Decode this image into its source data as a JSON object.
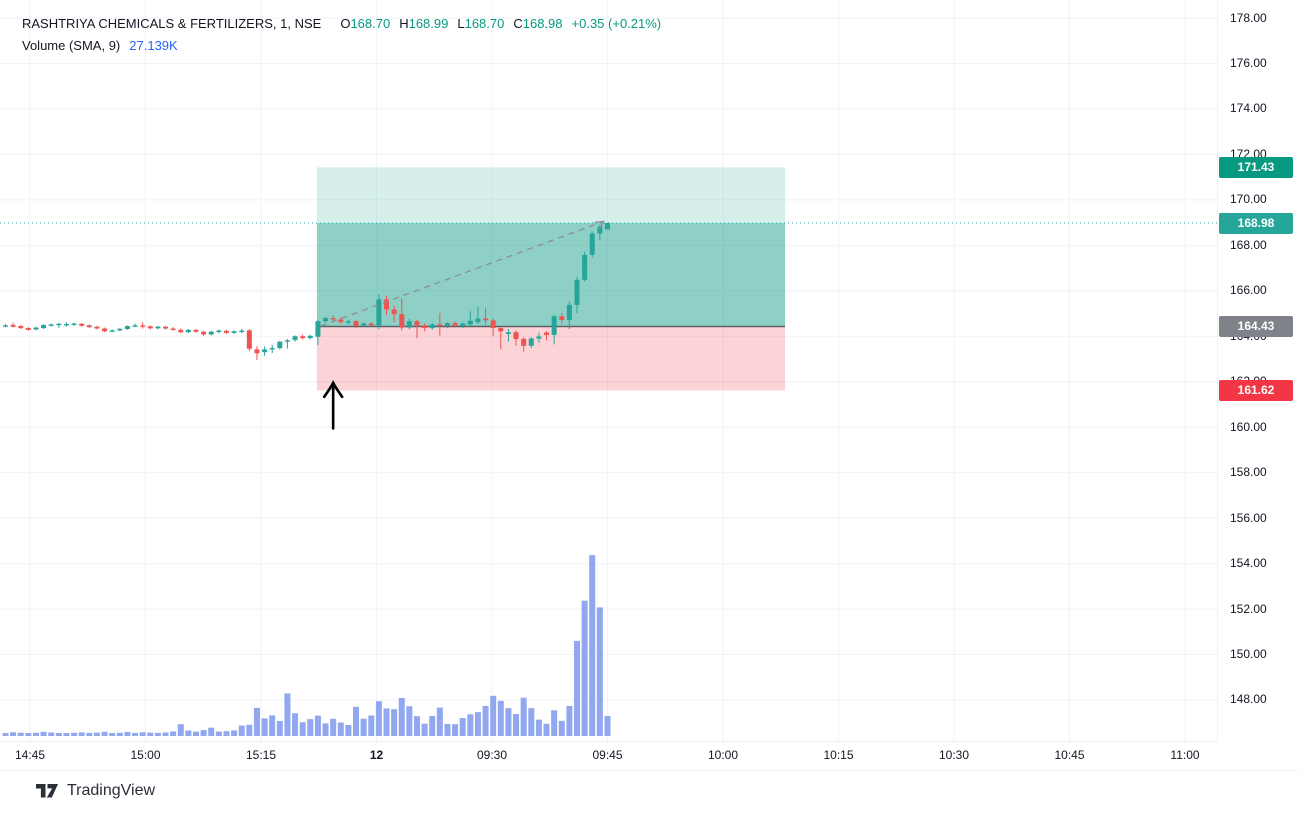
{
  "legend": {
    "title": "RASHTRIYA CHEMICALS & FERTILIZERS, 1, NSE",
    "ohlc": [
      {
        "label": "O",
        "value": "168.70"
      },
      {
        "label": "H",
        "value": "168.99"
      },
      {
        "label": "L",
        "value": "168.70"
      },
      {
        "label": "C",
        "value": "168.98"
      }
    ],
    "change": "+0.35 (+0.21%)",
    "volume_label": "Volume (SMA, 9)",
    "volume_value": "27.139K"
  },
  "price_axis": {
    "ticks": [
      {
        "label": "178.00",
        "price": 178.0
      },
      {
        "label": "176.00",
        "price": 176.0
      },
      {
        "label": "174.00",
        "price": 174.0
      },
      {
        "label": "172.00",
        "price": 172.0
      },
      {
        "label": "170.00",
        "price": 170.0
      },
      {
        "label": "168.00",
        "price": 168.0
      },
      {
        "label": "166.00",
        "price": 166.0
      },
      {
        "label": "164.00",
        "price": 164.0
      },
      {
        "label": "162.00",
        "price": 162.0
      },
      {
        "label": "160.00",
        "price": 160.0
      },
      {
        "label": "158.00",
        "price": 158.0
      },
      {
        "label": "156.00",
        "price": 156.0
      },
      {
        "label": "154.00",
        "price": 154.0
      },
      {
        "label": "152.00",
        "price": 152.0
      },
      {
        "label": "150.00",
        "price": 150.0
      },
      {
        "label": "148.00",
        "price": 148.0
      }
    ],
    "badges": [
      {
        "label": "171.43",
        "price": 171.43,
        "color": "#089981",
        "name": "target-price-badge"
      },
      {
        "label": "168.98",
        "price": 168.98,
        "color": "#26a69a",
        "name": "current-price-badge"
      },
      {
        "label": "164.43",
        "price": 164.43,
        "color": "#7f8289",
        "name": "entry-price-badge"
      },
      {
        "label": "161.62",
        "price": 161.62,
        "color": "#f23645",
        "name": "stop-price-badge"
      }
    ]
  },
  "time_axis": {
    "ticks": [
      {
        "label": "14:45",
        "bold": false
      },
      {
        "label": "15:00",
        "bold": false
      },
      {
        "label": "15:15",
        "bold": false
      },
      {
        "label": "12",
        "bold": true
      },
      {
        "label": "09:30",
        "bold": false
      },
      {
        "label": "09:45",
        "bold": false
      },
      {
        "label": "10:00",
        "bold": false
      },
      {
        "label": "10:15",
        "bold": false
      },
      {
        "label": "10:30",
        "bold": false
      },
      {
        "label": "10:45",
        "bold": false
      },
      {
        "label": "11:00",
        "bold": false
      }
    ]
  },
  "chart_data": {
    "type": "candlestick",
    "symbol": "RASHTRIYA CHEMICALS & FERTILIZERS",
    "interval": "1",
    "exchange": "NSE",
    "last": {
      "open": 168.7,
      "high": 168.99,
      "low": 168.7,
      "close": 168.98,
      "change": 0.35,
      "change_pct": 0.21
    },
    "current_price": 168.98,
    "volume_sma_period": 9,
    "volume_sma_value_k": 27.139,
    "ylim": [
      146.2,
      178.8
    ],
    "grid": true,
    "position_tool": {
      "target_price": 171.43,
      "entry_price": 164.43,
      "stop_price": 161.62,
      "start_index": 41,
      "end_time_approx": "10:07"
    },
    "annotations": {
      "trend_arrow_dashed": {
        "from_index": 41,
        "from_price": 164.45,
        "to_index": 79,
        "to_price": 169.05
      },
      "black_up_arrow": {
        "at_index": 43,
        "tip_price": 161.95,
        "tail_price": 159.95
      }
    },
    "candles": [
      [
        "14:41",
        164.45,
        164.55,
        164.4,
        164.48,
        2.2
      ],
      [
        "14:42",
        164.5,
        164.6,
        164.38,
        164.42,
        2.8
      ],
      [
        "14:43",
        164.45,
        164.5,
        164.32,
        164.36,
        2.4
      ],
      [
        "14:44",
        164.36,
        164.4,
        164.24,
        164.28,
        2.2
      ],
      [
        "14:45",
        164.3,
        164.42,
        164.26,
        164.38,
        2.4
      ],
      [
        "14:46",
        164.36,
        164.52,
        164.32,
        164.5,
        3.1
      ],
      [
        "14:47",
        164.46,
        164.56,
        164.42,
        164.52,
        2.6
      ],
      [
        "14:48",
        164.5,
        164.58,
        164.36,
        164.55,
        2.3
      ],
      [
        "14:49",
        164.52,
        164.62,
        164.42,
        164.54,
        2.2
      ],
      [
        "14:50",
        164.52,
        164.6,
        164.46,
        164.56,
        2.4
      ],
      [
        "14:51",
        164.55,
        164.58,
        164.42,
        164.46,
        2.7
      ],
      [
        "14:52",
        164.48,
        164.52,
        164.36,
        164.4,
        2.3
      ],
      [
        "14:53",
        164.42,
        164.46,
        164.3,
        164.34,
        2.5
      ],
      [
        "14:54",
        164.34,
        164.38,
        164.18,
        164.22,
        3.2
      ],
      [
        "14:55",
        164.22,
        164.3,
        164.18,
        164.26,
        2.2
      ],
      [
        "14:56",
        164.26,
        164.36,
        164.22,
        164.33,
        2.4
      ],
      [
        "14:57",
        164.32,
        164.48,
        164.28,
        164.45,
        3.0
      ],
      [
        "14:58",
        164.45,
        164.56,
        164.4,
        164.48,
        2.3
      ],
      [
        "14:59",
        164.48,
        164.62,
        164.34,
        164.44,
        2.8
      ],
      [
        "15:00",
        164.44,
        164.48,
        164.3,
        164.35,
        2.5
      ],
      [
        "15:01",
        164.35,
        164.46,
        164.3,
        164.42,
        2.3
      ],
      [
        "15:02",
        164.42,
        164.46,
        164.3,
        164.34,
        2.6
      ],
      [
        "15:03",
        164.34,
        164.4,
        164.24,
        164.28,
        3.4
      ],
      [
        "15:04",
        164.28,
        164.34,
        164.14,
        164.18,
        8.8
      ],
      [
        "15:05",
        164.18,
        164.32,
        164.14,
        164.28,
        4.1
      ],
      [
        "15:06",
        164.28,
        164.32,
        164.16,
        164.2,
        3.2
      ],
      [
        "15:07",
        164.2,
        164.24,
        164.02,
        164.08,
        4.4
      ],
      [
        "15:08",
        164.08,
        164.24,
        164.04,
        164.2,
        6.2
      ],
      [
        "15:09",
        164.2,
        164.3,
        164.12,
        164.25,
        3.3
      ],
      [
        "15:10",
        164.24,
        164.28,
        164.1,
        164.15,
        3.6
      ],
      [
        "15:11",
        164.15,
        164.26,
        164.1,
        164.22,
        4.2
      ],
      [
        "15:12",
        164.22,
        164.32,
        164.14,
        164.25,
        7.8
      ],
      [
        "15:13",
        164.26,
        164.32,
        163.36,
        163.45,
        8.4
      ],
      [
        "15:14",
        163.42,
        163.56,
        162.96,
        163.25,
        21.0
      ],
      [
        "15:15",
        163.3,
        163.55,
        163.14,
        163.42,
        13.2
      ],
      [
        "15:16",
        163.42,
        163.62,
        163.26,
        163.48,
        15.4
      ],
      [
        "15:17",
        163.48,
        163.8,
        163.42,
        163.76,
        11.2
      ],
      [
        "15:18",
        163.76,
        163.88,
        163.46,
        163.82,
        31.8
      ],
      [
        "15:19",
        163.84,
        164.04,
        163.76,
        164.0,
        17.0
      ],
      [
        "15:20",
        164.0,
        164.08,
        163.86,
        163.92,
        10.3
      ],
      [
        "15:21",
        163.92,
        164.06,
        163.86,
        164.02,
        12.6
      ],
      [
        "15:22",
        163.98,
        164.72,
        163.62,
        164.66,
        15.2
      ],
      [
        "15:23",
        164.66,
        164.86,
        164.6,
        164.8,
        9.4
      ],
      [
        "15:24",
        164.8,
        164.92,
        164.66,
        164.74,
        12.8
      ],
      [
        "15:25",
        164.74,
        164.82,
        164.56,
        164.62,
        10.1
      ],
      [
        "15:26",
        164.62,
        164.72,
        164.52,
        164.66,
        8.2
      ],
      [
        "15:27",
        164.66,
        164.72,
        164.36,
        164.46,
        21.8
      ],
      [
        "15:28",
        164.46,
        164.62,
        164.4,
        164.56,
        12.9
      ],
      [
        "15:29",
        164.56,
        164.64,
        164.42,
        164.48,
        15.3
      ],
      [
        "09:15",
        164.48,
        165.86,
        164.3,
        165.62,
        26.0
      ],
      [
        "09:16",
        165.62,
        165.78,
        164.92,
        165.18,
        20.6
      ],
      [
        "09:17",
        165.18,
        165.34,
        164.62,
        164.98,
        20.0
      ],
      [
        "09:18",
        164.98,
        165.66,
        164.26,
        164.38,
        28.4
      ],
      [
        "09:19",
        164.38,
        164.78,
        164.3,
        164.66,
        22.2
      ],
      [
        "09:20",
        164.66,
        164.72,
        163.92,
        164.48,
        14.8
      ],
      [
        "09:21",
        164.48,
        164.56,
        164.22,
        164.36,
        9.2
      ],
      [
        "09:22",
        164.36,
        164.58,
        164.28,
        164.52,
        15.0
      ],
      [
        "09:23",
        164.52,
        165.02,
        164.02,
        164.46,
        21.2
      ],
      [
        "09:24",
        164.46,
        164.62,
        164.36,
        164.58,
        9.0
      ],
      [
        "09:25",
        164.58,
        164.64,
        164.38,
        164.46,
        8.8
      ],
      [
        "09:26",
        164.46,
        164.62,
        164.36,
        164.56,
        13.4
      ],
      [
        "09:27",
        164.52,
        165.1,
        164.44,
        164.68,
        16.2
      ],
      [
        "09:28",
        164.62,
        165.32,
        164.54,
        164.78,
        17.8
      ],
      [
        "09:29",
        164.78,
        165.26,
        164.52,
        164.7,
        22.4
      ],
      [
        "09:30",
        164.7,
        164.78,
        164.02,
        164.36,
        30.0
      ],
      [
        "09:31",
        164.36,
        164.44,
        163.42,
        164.22,
        26.2
      ],
      [
        "09:32",
        164.1,
        164.32,
        163.76,
        164.18,
        20.8
      ],
      [
        "09:33",
        164.18,
        164.26,
        163.58,
        163.88,
        16.4
      ],
      [
        "09:34",
        163.88,
        163.96,
        163.32,
        163.58,
        28.6
      ],
      [
        "09:35",
        163.58,
        163.96,
        163.48,
        163.9,
        20.8
      ],
      [
        "09:36",
        163.9,
        164.16,
        163.72,
        163.99,
        12.2
      ],
      [
        "09:37",
        164.16,
        164.22,
        163.82,
        164.06,
        9.1
      ],
      [
        "09:38",
        164.06,
        164.96,
        163.64,
        164.88,
        19.2
      ],
      [
        "09:39",
        164.88,
        165.02,
        164.56,
        164.72,
        11.3
      ],
      [
        "09:40",
        164.72,
        165.52,
        164.32,
        165.38,
        22.4
      ],
      [
        "09:41",
        165.38,
        166.62,
        165.02,
        166.48,
        71.0
      ],
      [
        "09:42",
        166.48,
        167.72,
        166.4,
        167.58,
        101.0
      ],
      [
        "09:43",
        167.58,
        168.62,
        167.48,
        168.52,
        135.0
      ],
      [
        "09:44",
        168.52,
        168.92,
        168.22,
        168.82,
        96.0
      ],
      [
        "09:45",
        168.7,
        168.99,
        168.7,
        168.98,
        15.0
      ]
    ]
  },
  "colors": {
    "candle_up": "#26a69a",
    "candle_down": "#ef5350",
    "volume_bar": "#91a8f0",
    "profit_fill_light": "rgba(8,153,129,0.16)",
    "profit_fill_deep": "rgba(8,153,129,0.46)",
    "loss_fill": "rgba(242,54,69,0.22)",
    "entry_line": "#5b5f66",
    "current_price_line": "#26a69a",
    "trend_dash": "#8c8f98",
    "black_arrow": "#000000",
    "grid": "#f0f3fa",
    "axis_border": "#e0e3eb",
    "text": "#131722",
    "ohlc_value": "#089981",
    "volume_value_text": "#2962ff"
  },
  "footer": {
    "logo_text": "TradingView"
  }
}
